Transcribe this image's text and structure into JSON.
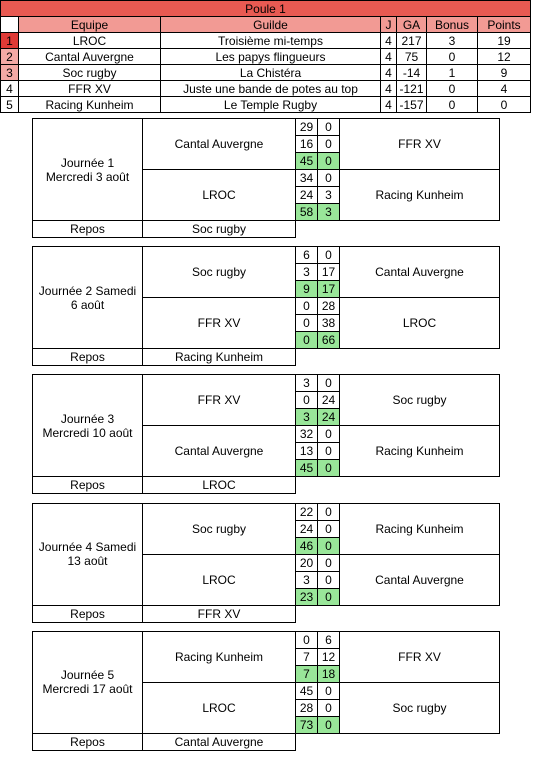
{
  "standings": {
    "title": "Poule 1",
    "headers": [
      "Equipe",
      "Guilde",
      "J",
      "GA",
      "Bonus",
      "Points"
    ],
    "rows": [
      [
        1,
        "LROC",
        "Troisième mi-temps",
        4,
        217,
        3,
        19
      ],
      [
        2,
        "Cantal Auvergne",
        "Les papys flingueurs",
        4,
        75,
        0,
        12
      ],
      [
        3,
        "Soc rugby",
        "La Chistéra",
        4,
        -14,
        1,
        9
      ],
      [
        4,
        "FFR XV",
        "Juste une bande de potes au top",
        4,
        -121,
        0,
        4
      ],
      [
        5,
        "Racing Kunheim",
        "Le Temple Rugby",
        4,
        -157,
        0,
        0
      ]
    ]
  },
  "days": [
    {
      "label": [
        "Journée 1",
        "Mercredi 3 août"
      ],
      "matches": [
        {
          "home": "Cantal Auvergne",
          "away": "FFR XV",
          "scores": [
            [
              29,
              0
            ],
            [
              16,
              0
            ],
            [
              45,
              0
            ]
          ]
        },
        {
          "home": "LROC",
          "away": "Racing Kunheim",
          "scores": [
            [
              34,
              0
            ],
            [
              24,
              3
            ],
            [
              58,
              3
            ]
          ]
        }
      ],
      "repos_label": "Repos",
      "repos": "Soc rugby"
    },
    {
      "label": [
        "Journée 2 Samedi",
        "6 août"
      ],
      "matches": [
        {
          "home": "Soc rugby",
          "away": "Cantal Auvergne",
          "scores": [
            [
              6,
              0
            ],
            [
              3,
              17
            ],
            [
              9,
              17
            ]
          ]
        },
        {
          "home": "FFR XV",
          "away": "LROC",
          "scores": [
            [
              0,
              28
            ],
            [
              0,
              38
            ],
            [
              0,
              66
            ]
          ]
        }
      ],
      "repos_label": "Repos",
      "repos": "Racing Kunheim"
    },
    {
      "label": [
        "Journée 3",
        "Mercredi 10 août"
      ],
      "matches": [
        {
          "home": "FFR XV",
          "away": "Soc rugby",
          "scores": [
            [
              3,
              0
            ],
            [
              0,
              24
            ],
            [
              3,
              24
            ]
          ]
        },
        {
          "home": "Cantal Auvergne",
          "away": "Racing Kunheim",
          "scores": [
            [
              32,
              0
            ],
            [
              13,
              0
            ],
            [
              45,
              0
            ]
          ]
        }
      ],
      "repos_label": "Repos",
      "repos": "LROC"
    },
    {
      "label": [
        "Journée 4 Samedi",
        "13 août"
      ],
      "matches": [
        {
          "home": "Soc rugby",
          "away": "Racing Kunheim",
          "scores": [
            [
              22,
              0
            ],
            [
              24,
              0
            ],
            [
              46,
              0
            ]
          ]
        },
        {
          "home": "LROC",
          "away": "Cantal Auvergne",
          "scores": [
            [
              20,
              0
            ],
            [
              3,
              0
            ],
            [
              23,
              0
            ]
          ]
        }
      ],
      "repos_label": "Repos",
      "repos": "FFR XV"
    },
    {
      "label": [
        "Journée 5",
        "Mercredi 17 août"
      ],
      "matches": [
        {
          "home": "Racing Kunheim",
          "away": "FFR XV",
          "scores": [
            [
              0,
              6
            ],
            [
              7,
              12
            ],
            [
              7,
              18
            ]
          ]
        },
        {
          "home": "LROC",
          "away": "Soc rugby",
          "scores": [
            [
              45,
              0
            ],
            [
              28,
              0
            ],
            [
              73,
              0
            ]
          ]
        }
      ],
      "repos_label": "Repos",
      "repos": "Cantal Auvergne"
    }
  ]
}
